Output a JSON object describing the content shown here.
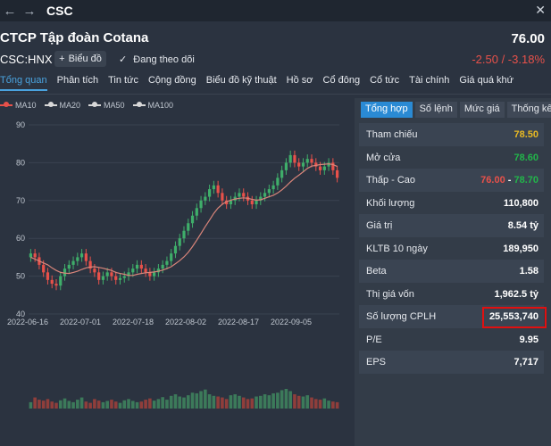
{
  "header": {
    "nav_back": "←",
    "nav_forward": "→",
    "symbol": "CSC",
    "close": "✕"
  },
  "company": {
    "name": "CTCP Tập đoàn Cotana",
    "exchange": "CSC:HNX",
    "price": "76.00",
    "change": "-2.50 / -3.18%",
    "chart_button": "Biểu đồ",
    "follow_label": "Đang theo dõi"
  },
  "tabs": [
    "Tổng quan",
    "Phân tích",
    "Tin tức",
    "Cộng đồng",
    "Biểu đồ kỹ thuật",
    "Hồ sơ",
    "Cổ đông",
    "Cổ tức",
    "Tài chính",
    "Giá quá khứ"
  ],
  "ma_legend": [
    {
      "label": "MA10",
      "color": "#e8514a"
    },
    {
      "label": "MA20",
      "color": "#d8d8d8"
    },
    {
      "label": "MA50",
      "color": "#d8d8d8"
    },
    {
      "label": "MA100",
      "color": "#d8d8d8"
    }
  ],
  "chart_data": {
    "type": "candlestick",
    "y_ticks": [
      "90",
      "80",
      "70",
      "60",
      "50",
      "40"
    ],
    "ylim": [
      40,
      90
    ],
    "x_ticks": [
      "2022-06-16",
      "2022-07-01",
      "2022-07-18",
      "2022-08-02",
      "2022-08-17",
      "2022-09-05"
    ],
    "close": [
      56,
      55,
      53,
      51,
      49,
      48,
      47.5,
      50,
      52,
      53,
      54,
      55,
      56,
      54,
      52,
      51,
      49,
      50,
      51,
      50,
      49,
      49.5,
      50,
      51,
      52,
      53,
      52,
      51,
      50,
      51,
      52,
      53,
      54,
      56,
      58,
      60,
      62,
      64,
      66,
      68,
      70,
      71,
      73,
      74,
      72,
      70,
      69,
      70,
      71,
      72,
      71,
      70,
      69,
      70,
      71,
      72,
      73,
      74,
      76,
      78,
      80,
      82,
      80,
      79,
      80,
      81,
      80,
      79,
      78,
      79,
      80,
      78,
      76
    ],
    "ma10": [
      55,
      54.5,
      54,
      53.5,
      53,
      52.2,
      51.5,
      51,
      50.8,
      50.7,
      51,
      51.3,
      51.8,
      52.2,
      52.4,
      52.5,
      52.3,
      52.1,
      51.8,
      51.5,
      51,
      50.7,
      50.5,
      50.2,
      50.2,
      50.5,
      50.7,
      50.9,
      51,
      51.1,
      51.3,
      51.6,
      52,
      52.5,
      53.3,
      54.1,
      55.1,
      56.3,
      57.8,
      59.5,
      61.3,
      63.1,
      64.8,
      66.6,
      68,
      69,
      69.7,
      70.1,
      70.4,
      70.6,
      70.7,
      70.6,
      70.3,
      70.1,
      70.2,
      70.6,
      71,
      71.4,
      72,
      72.8,
      73.8,
      74.9,
      75.9,
      76.7,
      77.6,
      78.5,
      79.1,
      79.3,
      79.5,
      79.6,
      79.7,
      79.5,
      79
    ],
    "volume": [
      20,
      35,
      28,
      25,
      30,
      22,
      18,
      26,
      32,
      24,
      20,
      28,
      35,
      22,
      18,
      30,
      25,
      20,
      24,
      28,
      22,
      18,
      26,
      30,
      24,
      20,
      22,
      28,
      32,
      25,
      30,
      36,
      28,
      40,
      45,
      38,
      35,
      42,
      50,
      48,
      55,
      60,
      45,
      40,
      38,
      35,
      30,
      42,
      45,
      40,
      35,
      30,
      32,
      38,
      40,
      45,
      42,
      48,
      50,
      58,
      62,
      55,
      45,
      40,
      38,
      42,
      35,
      30,
      28,
      32,
      25,
      22,
      20
    ]
  },
  "summary_tabs": [
    "Tổng hợp",
    "Số lệnh",
    "Mức giá",
    "Thống kê"
  ],
  "rows": [
    {
      "label": "Tham chiếu",
      "value": "78.50",
      "color": "#e8b923"
    },
    {
      "label": "Mở cửa",
      "value": "78.60",
      "color": "#22b54a"
    },
    {
      "label": "Thấp - Cao",
      "low": "76.00",
      "sep": " - ",
      "high": "78.70"
    },
    {
      "label": "Khối lượng",
      "value": "110,800"
    },
    {
      "label": "Giá trị",
      "value": "8.54 tỷ"
    },
    {
      "label": "KLTB 10 ngày",
      "value": "189,950"
    },
    {
      "label": "Beta",
      "value": "1.58"
    },
    {
      "label": "Thị giá vốn",
      "value": "1,962.5 tỷ"
    },
    {
      "label": "Số lượng CPLH",
      "value": "25,553,740"
    },
    {
      "label": "P/E",
      "value": "9.95"
    },
    {
      "label": "EPS",
      "value": "7,717"
    }
  ]
}
